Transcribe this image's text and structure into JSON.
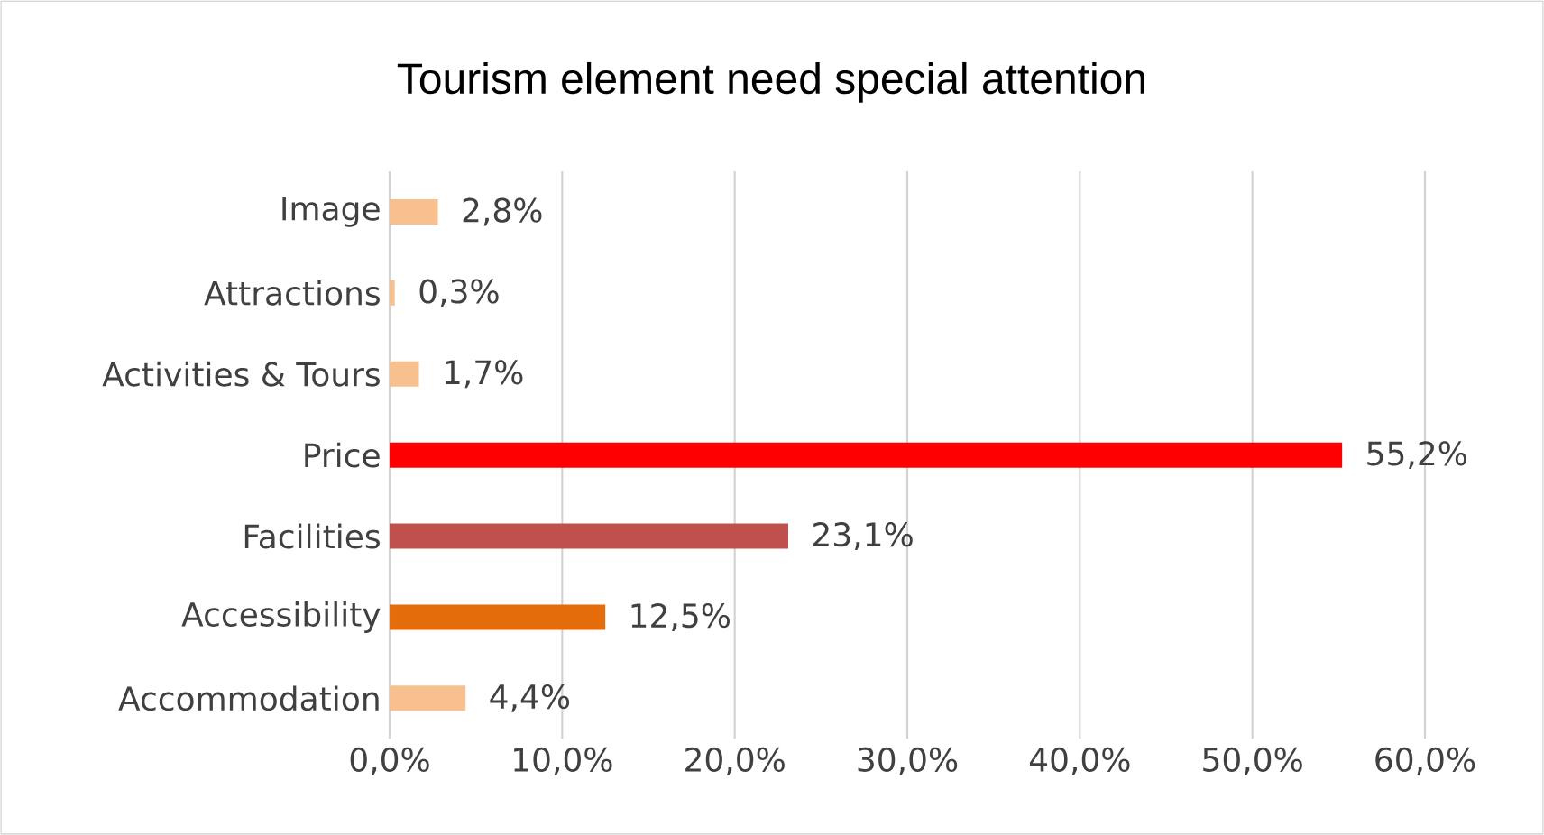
{
  "chart_data": {
    "type": "bar",
    "orientation": "horizontal",
    "title": "Tourism element need special attention",
    "categories": [
      "Image",
      "Attractions",
      "Activities & Tours",
      "Price",
      "Facilities",
      "Accessibility",
      "Accommodation"
    ],
    "values": [
      2.8,
      0.3,
      1.7,
      55.2,
      23.1,
      12.5,
      4.4
    ],
    "colors": [
      "#f8c08f",
      "#f8c08f",
      "#f8c08f",
      "#ff0000",
      "#c0504d",
      "#e46c0a",
      "#f8c08f"
    ],
    "value_labels": [
      "2,8%",
      "0,3%",
      "1,7%",
      "55,2%",
      "23,1%",
      "12,5%",
      "4,4%"
    ],
    "xlim": [
      0,
      60
    ],
    "xticks": [
      {
        "value": 0,
        "label": "0,0%"
      },
      {
        "value": 10,
        "label": "10,0%"
      },
      {
        "value": 20,
        "label": "20,0%"
      },
      {
        "value": 30,
        "label": "30,0%"
      },
      {
        "value": 40,
        "label": "40,0%"
      },
      {
        "value": 50,
        "label": "50,0%"
      },
      {
        "value": 60,
        "label": "60,0%"
      }
    ],
    "grid": "x"
  }
}
